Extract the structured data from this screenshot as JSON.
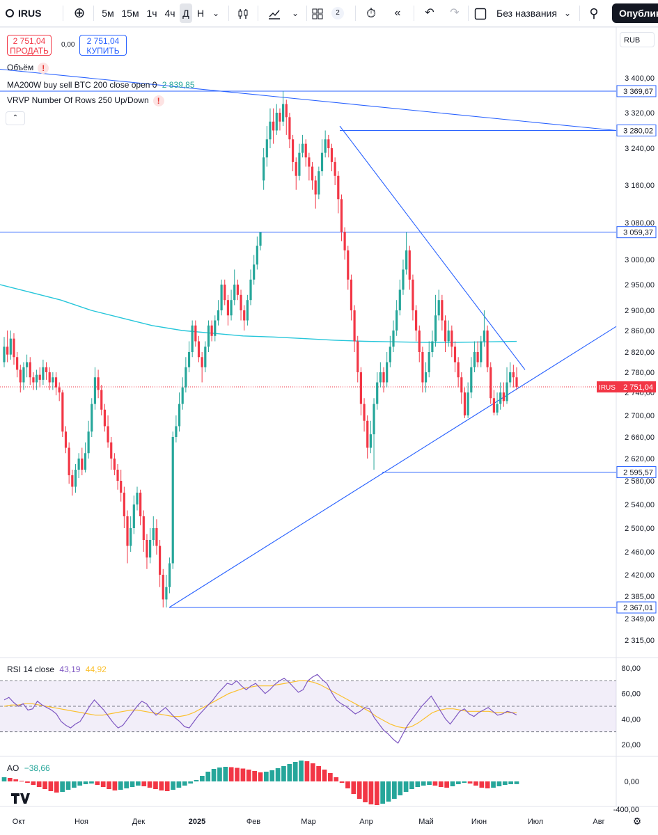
{
  "toolbar": {
    "symbol": "IRUS",
    "intervals": [
      "5м",
      "15м",
      "1ч",
      "4ч",
      "Д",
      "Н"
    ],
    "active_interval": "Д",
    "layout_count": "2",
    "chart_name": "Без названия",
    "publish_label": "Опублико"
  },
  "quote": {
    "sell_price": "2 751,04",
    "sell_label": "ПРОДАТЬ",
    "spread": "0,00",
    "buy_price": "2 751,04",
    "buy_label": "КУПИТЬ"
  },
  "currency": "RUB",
  "legends": {
    "volume": "Объём",
    "ma": "MA200W buy sell BTC 200 close open 0",
    "ma_value": "2 839,85",
    "vrvp": "VRVP Number Of Rows 250 Up/Down",
    "rsi": "RSI 14 close",
    "rsi_value": "43,19",
    "rsi_ma_value": "44,92",
    "ao": "AO",
    "ao_value": "−38,66"
  },
  "chart_data": {
    "type": "candlestick",
    "symbol": "IRUS",
    "last_price": 2751.04,
    "last_price_label": "2 751,04",
    "x_labels": [
      "Окт",
      "Ноя",
      "Дек",
      "2025",
      "Фев",
      "Мар",
      "Апр",
      "Май",
      "Июн",
      "Июл",
      "Авг"
    ],
    "price_axis_ticks": [
      "3 400,00",
      "3 320,00",
      "3 240,00",
      "3 160,00",
      "3 080,00",
      "3 000,00",
      "2 950,00",
      "2 900,00",
      "2 860,00",
      "2 820,00",
      "2 780,00",
      "2 740,00",
      "2 700,00",
      "2 660,00",
      "2 620,00",
      "2 580,00",
      "2 540,00",
      "2 500,00",
      "2 460,00",
      "2 420,00",
      "2 385,00",
      "2 349,00",
      "2 315,00"
    ],
    "price_axis_values": [
      3400,
      3320,
      3240,
      3160,
      3080,
      3000,
      2950,
      2900,
      2860,
      2820,
      2780,
      2740,
      2700,
      2660,
      2620,
      2580,
      2540,
      2500,
      2460,
      2420,
      2385,
      2349,
      2315
    ],
    "horizontal_levels": [
      {
        "value": 3369.67,
        "label": "3 369,67"
      },
      {
        "value": 3280.02,
        "label": "3 280,02"
      },
      {
        "value": 3059.37,
        "label": "3 059,37"
      },
      {
        "value": 2595.57,
        "label": "2 595,57"
      },
      {
        "value": 2367.01,
        "label": "2 367,01"
      }
    ],
    "candles": [
      [
        2800,
        2830,
        2790,
        2848
      ],
      [
        2830,
        2815,
        2800,
        2860
      ],
      [
        2815,
        2845,
        2805,
        2860
      ],
      [
        2845,
        2810,
        2795,
        2855
      ],
      [
        2810,
        2785,
        2770,
        2820
      ],
      [
        2785,
        2760,
        2740,
        2795
      ],
      [
        2760,
        2790,
        2745,
        2800
      ],
      [
        2790,
        2800,
        2770,
        2815
      ],
      [
        2800,
        2770,
        2755,
        2810
      ],
      [
        2770,
        2760,
        2745,
        2780
      ],
      [
        2760,
        2775,
        2745,
        2785
      ],
      [
        2775,
        2765,
        2750,
        2790
      ],
      [
        2765,
        2790,
        2755,
        2805
      ],
      [
        2790,
        2780,
        2765,
        2800
      ],
      [
        2780,
        2760,
        2745,
        2790
      ],
      [
        2760,
        2770,
        2745,
        2780
      ],
      [
        2770,
        2750,
        2735,
        2780
      ],
      [
        2750,
        2740,
        2725,
        2760
      ],
      [
        2740,
        2670,
        2660,
        2745
      ],
      [
        2670,
        2640,
        2630,
        2680
      ],
      [
        2640,
        2590,
        2575,
        2650
      ],
      [
        2590,
        2570,
        2555,
        2600
      ],
      [
        2570,
        2600,
        2560,
        2610
      ],
      [
        2600,
        2620,
        2585,
        2630
      ],
      [
        2620,
        2600,
        2590,
        2640
      ],
      [
        2600,
        2630,
        2595,
        2650
      ],
      [
        2630,
        2670,
        2620,
        2690
      ],
      [
        2670,
        2720,
        2660,
        2730
      ],
      [
        2720,
        2770,
        2710,
        2790
      ],
      [
        2770,
        2745,
        2730,
        2785
      ],
      [
        2745,
        2710,
        2700,
        2755
      ],
      [
        2710,
        2680,
        2670,
        2720
      ],
      [
        2680,
        2650,
        2640,
        2700
      ],
      [
        2650,
        2620,
        2600,
        2660
      ],
      [
        2620,
        2600,
        2590,
        2630
      ],
      [
        2600,
        2580,
        2565,
        2610
      ],
      [
        2580,
        2560,
        2545,
        2600
      ],
      [
        2560,
        2520,
        2500,
        2570
      ],
      [
        2520,
        2470,
        2440,
        2530
      ],
      [
        2470,
        2500,
        2460,
        2520
      ],
      [
        2500,
        2540,
        2490,
        2555
      ],
      [
        2540,
        2560,
        2530,
        2570
      ],
      [
        2560,
        2520,
        2505,
        2565
      ],
      [
        2520,
        2480,
        2460,
        2530
      ],
      [
        2480,
        2450,
        2430,
        2490
      ],
      [
        2450,
        2480,
        2440,
        2500
      ],
      [
        2480,
        2500,
        2470,
        2520
      ],
      [
        2500,
        2470,
        2455,
        2515
      ],
      [
        2470,
        2420,
        2400,
        2480
      ],
      [
        2420,
        2380,
        2367,
        2430
      ],
      [
        2380,
        2400,
        2367,
        2420
      ],
      [
        2400,
        2440,
        2390,
        2450
      ],
      [
        2440,
        2660,
        2430,
        2670
      ],
      [
        2660,
        2680,
        2650,
        2700
      ],
      [
        2680,
        2720,
        2670,
        2740
      ],
      [
        2720,
        2750,
        2710,
        2770
      ],
      [
        2750,
        2790,
        2740,
        2810
      ],
      [
        2790,
        2820,
        2780,
        2840
      ],
      [
        2820,
        2870,
        2810,
        2880
      ],
      [
        2870,
        2840,
        2830,
        2880
      ],
      [
        2840,
        2810,
        2800,
        2850
      ],
      [
        2810,
        2790,
        2760,
        2820
      ],
      [
        2790,
        2830,
        2780,
        2840
      ],
      [
        2830,
        2870,
        2820,
        2880
      ],
      [
        2870,
        2850,
        2840,
        2880
      ],
      [
        2850,
        2880,
        2840,
        2890
      ],
      [
        2880,
        2900,
        2870,
        2920
      ],
      [
        2900,
        2950,
        2890,
        2960
      ],
      [
        2950,
        2920,
        2910,
        2960
      ],
      [
        2920,
        2890,
        2870,
        2930
      ],
      [
        2890,
        2920,
        2880,
        2940
      ],
      [
        2920,
        2950,
        2910,
        2980
      ],
      [
        2950,
        2930,
        2920,
        2960
      ],
      [
        2930,
        2900,
        2880,
        2940
      ],
      [
        2900,
        2880,
        2860,
        2910
      ],
      [
        2880,
        2920,
        2870,
        2930
      ],
      [
        2920,
        2960,
        2910,
        2980
      ],
      [
        2960,
        2990,
        2950,
        3010
      ],
      [
        2990,
        3030,
        2980,
        3050
      ],
      [
        3030,
        3059,
        3020,
        3059
      ],
      [
        3170,
        3220,
        3150,
        3240
      ],
      [
        3220,
        3260,
        3200,
        3290
      ],
      [
        3260,
        3300,
        3240,
        3330
      ],
      [
        3300,
        3280,
        3250,
        3330
      ],
      [
        3280,
        3320,
        3270,
        3340
      ],
      [
        3320,
        3300,
        3280,
        3330
      ],
      [
        3300,
        3340,
        3290,
        3369
      ],
      [
        3340,
        3310,
        3270,
        3350
      ],
      [
        3310,
        3260,
        3240,
        3320
      ],
      [
        3260,
        3210,
        3190,
        3270
      ],
      [
        3210,
        3180,
        3150,
        3220
      ],
      [
        3180,
        3230,
        3170,
        3250
      ],
      [
        3230,
        3250,
        3220,
        3270
      ],
      [
        3250,
        3220,
        3200,
        3260
      ],
      [
        3220,
        3200,
        3170,
        3230
      ],
      [
        3200,
        3170,
        3150,
        3210
      ],
      [
        3170,
        3140,
        3110,
        3180
      ],
      [
        3140,
        3190,
        3130,
        3200
      ],
      [
        3190,
        3230,
        3180,
        3260
      ],
      [
        3230,
        3260,
        3220,
        3280
      ],
      [
        3260,
        3240,
        3220,
        3270
      ],
      [
        3240,
        3210,
        3190,
        3250
      ],
      [
        3210,
        3180,
        3160,
        3220
      ],
      [
        3180,
        3130,
        3100,
        3190
      ],
      [
        3130,
        3060,
        3040,
        3140
      ],
      [
        3060,
        3020,
        3000,
        3070
      ],
      [
        3020,
        2960,
        2940,
        3030
      ],
      [
        2960,
        2900,
        2880,
        2970
      ],
      [
        2900,
        2840,
        2820,
        2910
      ],
      [
        2840,
        2780,
        2760,
        2850
      ],
      [
        2780,
        2720,
        2700,
        2790
      ],
      [
        2720,
        2690,
        2670,
        2730
      ],
      [
        2690,
        2640,
        2620,
        2700
      ],
      [
        2640,
        2665,
        2630,
        2690
      ],
      [
        2665,
        2720,
        2600,
        2730
      ],
      [
        2720,
        2760,
        2710,
        2780
      ],
      [
        2760,
        2780,
        2750,
        2800
      ],
      [
        2780,
        2760,
        2740,
        2790
      ],
      [
        2760,
        2800,
        2750,
        2820
      ],
      [
        2800,
        2830,
        2790,
        2850
      ],
      [
        2830,
        2860,
        2820,
        2880
      ],
      [
        2860,
        2900,
        2850,
        2920
      ],
      [
        2900,
        2940,
        2890,
        2960
      ],
      [
        2940,
        2980,
        2930,
        3000
      ],
      [
        2980,
        3020,
        2970,
        3059
      ],
      [
        3020,
        2960,
        2940,
        3030
      ],
      [
        2960,
        2900,
        2880,
        2970
      ],
      [
        2900,
        2860,
        2840,
        2910
      ],
      [
        2860,
        2820,
        2800,
        2870
      ],
      [
        2820,
        2760,
        2740,
        2830
      ],
      [
        2760,
        2780,
        2740,
        2800
      ],
      [
        2780,
        2820,
        2770,
        2840
      ],
      [
        2820,
        2840,
        2810,
        2860
      ],
      [
        2840,
        2890,
        2830,
        2930
      ],
      [
        2890,
        2920,
        2880,
        2940
      ],
      [
        2920,
        2880,
        2860,
        2930
      ],
      [
        2880,
        2840,
        2820,
        2890
      ],
      [
        2840,
        2860,
        2830,
        2880
      ],
      [
        2860,
        2830,
        2810,
        2870
      ],
      [
        2830,
        2800,
        2780,
        2840
      ],
      [
        2800,
        2770,
        2750,
        2810
      ],
      [
        2770,
        2740,
        2720,
        2780
      ],
      [
        2740,
        2700,
        2695,
        2750
      ],
      [
        2700,
        2740,
        2695,
        2760
      ],
      [
        2740,
        2790,
        2730,
        2810
      ],
      [
        2790,
        2820,
        2780,
        2840
      ],
      [
        2820,
        2800,
        2790,
        2840
      ],
      [
        2800,
        2840,
        2790,
        2850
      ],
      [
        2840,
        2860,
        2830,
        2900
      ],
      [
        2860,
        2790,
        2780,
        2870
      ],
      [
        2790,
        2730,
        2720,
        2800
      ],
      [
        2730,
        2705,
        2700,
        2745
      ],
      [
        2705,
        2720,
        2700,
        2740
      ],
      [
        2720,
        2740,
        2710,
        2760
      ],
      [
        2740,
        2725,
        2715,
        2760
      ],
      [
        2725,
        2760,
        2720,
        2790
      ],
      [
        2760,
        2780,
        2750,
        2800
      ],
      [
        2780,
        2770,
        2750,
        2795
      ],
      [
        2770,
        2751.04,
        2745,
        2790
      ]
    ],
    "ma200w": [
      2950,
      2935,
      2920,
      2900,
      2885,
      2870,
      2860,
      2855,
      2850,
      2848,
      2845,
      2842,
      2840,
      2839,
      2838,
      2838,
      2839,
      2839.85
    ],
    "trendlines": [
      {
        "from": [
          0,
          3420
        ],
        "to": [
          1,
          3280
        ]
      },
      {
        "from": [
          2,
          3300
        ],
        "to": [
          3,
          2780
        ]
      },
      {
        "from": [
          4,
          2367.01
        ],
        "to": [
          5,
          2870
        ]
      }
    ],
    "rsi": {
      "name": "RSI 14 close",
      "last": 43.19,
      "ma_last": 44.92,
      "ylim": [
        15,
        85
      ],
      "ticks": [
        "80,00",
        "60,00",
        "40,00",
        "20,00"
      ],
      "tick_values": [
        80,
        60,
        40,
        20
      ],
      "band_upper": 70,
      "band_mid": 50,
      "band_lower": 30,
      "values": [
        55,
        57,
        53,
        50,
        52,
        47,
        48,
        54,
        51,
        49,
        47,
        44,
        38,
        35,
        33,
        36,
        38,
        44,
        50,
        55,
        51,
        47,
        42,
        37,
        33,
        35,
        40,
        45,
        50,
        54,
        52,
        47,
        43,
        46,
        49,
        45,
        41,
        38,
        34,
        33,
        38,
        43,
        47,
        51,
        55,
        60,
        64,
        68,
        67,
        70,
        66,
        63,
        66,
        68,
        64,
        60,
        63,
        67,
        70,
        72,
        69,
        65,
        61,
        63,
        70,
        73,
        75,
        71,
        68,
        61,
        55,
        52,
        50,
        47,
        44,
        46,
        49,
        48,
        41,
        36,
        31,
        28,
        24,
        21,
        28,
        35,
        40,
        45,
        50,
        54,
        58,
        52,
        46,
        40,
        36,
        41,
        46,
        48,
        44,
        42,
        45,
        47,
        49,
        46,
        43,
        44,
        46,
        45,
        43.19
      ],
      "ma_values": [
        50,
        51,
        51,
        52,
        52,
        51,
        50,
        49,
        48,
        47,
        46,
        45,
        44,
        43,
        43,
        44,
        45,
        46,
        47,
        47,
        46,
        45,
        44,
        43,
        42,
        42,
        43,
        45,
        48,
        51,
        54,
        57,
        60,
        62,
        64,
        65,
        66,
        66,
        66,
        67,
        68,
        69,
        70,
        70,
        69,
        67,
        64,
        61,
        58,
        55,
        52,
        49,
        46,
        42,
        39,
        36,
        34,
        33,
        34,
        37,
        41,
        45,
        47,
        48,
        48,
        47,
        46,
        46,
        46,
        46,
        45,
        45,
        45,
        44.92
      ]
    },
    "ao": {
      "name": "AO",
      "last": -38.66,
      "ticks": [
        "0,00",
        "-400,00"
      ],
      "tick_values": [
        0,
        -400
      ],
      "values": [
        60,
        50,
        30,
        10,
        -20,
        -50,
        -80,
        -110,
        -140,
        -160,
        -150,
        -120,
        -90,
        -60,
        -40,
        -30,
        -50,
        -80,
        -110,
        -130,
        -120,
        -100,
        -80,
        -60,
        -70,
        -90,
        -110,
        -130,
        -140,
        -120,
        -90,
        -60,
        -30,
        20,
        80,
        140,
        180,
        200,
        210,
        205,
        195,
        185,
        170,
        150,
        130,
        140,
        160,
        190,
        220,
        250,
        280,
        300,
        290,
        260,
        220,
        170,
        120,
        60,
        -20,
        -100,
        -180,
        -250,
        -300,
        -330,
        -340,
        -320,
        -290,
        -250,
        -200,
        -150,
        -110,
        -80,
        -60,
        -50,
        -60,
        -80,
        -90,
        -70,
        -40,
        -20,
        -30,
        -60,
        -90,
        -100,
        -90,
        -70,
        -50,
        -40,
        -38.66
      ],
      "up_color": "#26a69a",
      "down_color": "#f23645"
    },
    "colors": {
      "up": "#26a69a",
      "down": "#f23645",
      "trendline": "#2962ff",
      "level": "#2962ff",
      "ma": "#26c6da",
      "rsi": "#7e57c2",
      "rsi_ma": "#fbc02d",
      "last_price_bg": "#f23645"
    }
  }
}
